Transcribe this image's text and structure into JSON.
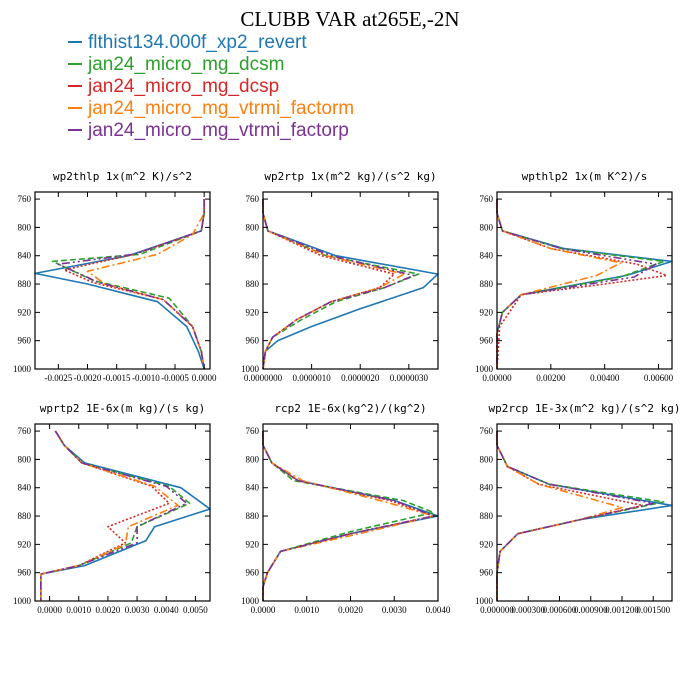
{
  "figure": {
    "title": "CLUBB VAR at265E,-2N"
  },
  "legend": [
    {
      "name": "flthist134.000f_xp2_revert",
      "color": "#1f77b4",
      "dash": ""
    },
    {
      "name": "jan24_micro_mg_dcsm",
      "color": "#2ca02c",
      "dash": "6,3"
    },
    {
      "name": "jan24_micro_mg_dcsp",
      "color": "#d62728",
      "dash": "2,2"
    },
    {
      "name": "jan24_micro_mg_vtrmi_factorm",
      "color": "#ff7f0e",
      "dash": "8,3,2,3"
    },
    {
      "name": "jan24_micro_mg_vtrmi_factorp",
      "color": "#7b3294",
      "dash": "8,3,2,3,2,3"
    }
  ],
  "chart_data": [
    {
      "type": "line",
      "title": "wp2thlp  1x(m^2 K)/s^2",
      "xlim": [
        -0.0029,
        0.0001
      ],
      "xticks": [
        -0.0025,
        -0.002,
        -0.0015,
        -0.001,
        -0.0005,
        0.0
      ],
      "xtick_labels": [
        "-0.0025",
        "-0.0020",
        "-0.0015",
        "-0.0010",
        "-0.0005",
        "0.0000"
      ],
      "ylim": [
        1000,
        750
      ],
      "yticks": [
        760,
        800,
        840,
        880,
        920,
        960,
        1000
      ],
      "series": [
        {
          "name": "flthist134.000f_xp2_revert",
          "values": [
            0,
            0,
            -5e-05,
            -0.0013,
            -0.0029,
            -0.002,
            -0.0008,
            -0.0003,
            -0.0001,
            0
          ],
          "y": [
            760,
            780,
            805,
            840,
            865,
            880,
            905,
            940,
            975,
            1000
          ]
        },
        {
          "name": "jan24_micro_mg_dcsm",
          "values": [
            0,
            0,
            -5e-05,
            -0.0011,
            -0.0026,
            -0.0019,
            -0.0006,
            -0.0002,
            -5e-05,
            0
          ],
          "y": [
            760,
            780,
            805,
            838,
            848,
            875,
            900,
            940,
            975,
            1000
          ]
        },
        {
          "name": "jan24_micro_mg_dcsp",
          "values": [
            0,
            0,
            -5e-05,
            -0.0012,
            -0.0024,
            -0.0019,
            -0.0007,
            -0.0002,
            -5e-05,
            0
          ],
          "y": [
            760,
            780,
            805,
            838,
            860,
            878,
            902,
            940,
            975,
            1000
          ]
        },
        {
          "name": "jan24_micro_mg_vtrmi_factorm",
          "values": [
            0,
            0,
            -0.0002,
            -0.0008,
            -0.002,
            -0.0017,
            -0.0007,
            -0.0002,
            -5e-05,
            0
          ],
          "y": [
            760,
            780,
            810,
            838,
            862,
            880,
            902,
            940,
            975,
            1000
          ]
        },
        {
          "name": "jan24_micro_mg_vtrmi_factorp",
          "values": [
            0,
            0,
            -5e-05,
            -0.0012,
            -0.0025,
            -0.0018,
            -0.0007,
            -0.0002,
            -5e-05,
            0
          ],
          "y": [
            760,
            780,
            805,
            838,
            852,
            878,
            902,
            940,
            975,
            1000
          ]
        }
      ]
    },
    {
      "type": "line",
      "title": "wp2rtp  1x(m^2 kg)/(s^2 kg)",
      "xlim": [
        0,
        3.6e-06
      ],
      "xticks": [
        0,
        1e-06,
        2e-06,
        3e-06
      ],
      "xtick_labels": [
        "0.0000000",
        "0.0000010",
        "0.0000020",
        "0.0000030"
      ],
      "ylim": [
        1000,
        750
      ],
      "yticks": [
        760,
        800,
        840,
        880,
        920,
        960,
        1000
      ],
      "series": [
        {
          "name": "flthist134.000f_xp2_revert",
          "values": [
            0,
            0,
            1e-07,
            1.5e-06,
            3.6e-06,
            3.3e-06,
            2e-06,
            1e-06,
            3e-07,
            5e-08,
            0
          ],
          "y": [
            760,
            780,
            805,
            840,
            866,
            885,
            915,
            940,
            960,
            975,
            1000
          ]
        },
        {
          "name": "jan24_micro_mg_dcsm",
          "values": [
            0,
            0,
            1e-07,
            1.3e-06,
            3.2e-06,
            2.5e-06,
            1.5e-06,
            8e-07,
            2e-07,
            5e-08,
            0
          ],
          "y": [
            760,
            780,
            805,
            840,
            866,
            885,
            905,
            930,
            955,
            975,
            1000
          ]
        },
        {
          "name": "jan24_micro_mg_dcsp",
          "values": [
            0,
            0,
            1e-07,
            1.2e-06,
            2.7e-06,
            2.4e-06,
            1.4e-06,
            7e-07,
            2e-07,
            5e-08,
            0
          ],
          "y": [
            760,
            780,
            805,
            840,
            866,
            885,
            905,
            930,
            955,
            975,
            1000
          ]
        },
        {
          "name": "jan24_micro_mg_vtrmi_factorm",
          "values": [
            0,
            0,
            1e-07,
            1.3e-06,
            2.9e-06,
            2.4e-06,
            1.4e-06,
            7e-07,
            2e-07,
            5e-08,
            0
          ],
          "y": [
            760,
            780,
            805,
            840,
            866,
            885,
            905,
            930,
            955,
            975,
            1000
          ]
        },
        {
          "name": "jan24_micro_mg_vtrmi_factorp",
          "values": [
            0,
            0,
            1e-07,
            1.4e-06,
            3.1e-06,
            2.5e-06,
            1.4e-06,
            7e-07,
            2e-07,
            5e-08,
            0
          ],
          "y": [
            760,
            780,
            805,
            840,
            868,
            885,
            905,
            930,
            955,
            975,
            1000
          ]
        }
      ]
    },
    {
      "type": "line",
      "title": "wpthlp2  1x(m K^2)/s",
      "xlim": [
        0,
        0.0065
      ],
      "xticks": [
        0,
        0.002,
        0.004,
        0.006
      ],
      "xtick_labels": [
        "0.00000",
        "0.00200",
        "0.00400",
        "0.00600"
      ],
      "ylim": [
        1000,
        750
      ],
      "yticks": [
        760,
        800,
        840,
        880,
        920,
        960,
        1000
      ],
      "series": [
        {
          "name": "flthist134.000f_xp2_revert",
          "values": [
            0,
            0,
            0.0002,
            0.0025,
            0.0065,
            0.0048,
            0.0009,
            0.0002,
            0,
            0
          ],
          "y": [
            760,
            780,
            805,
            830,
            848,
            868,
            895,
            920,
            950,
            1000
          ]
        },
        {
          "name": "jan24_micro_mg_dcsm",
          "values": [
            0,
            0,
            0.0002,
            0.0024,
            0.0062,
            0.0046,
            0.0009,
            0.0002,
            0,
            0
          ],
          "y": [
            760,
            780,
            805,
            830,
            848,
            870,
            895,
            920,
            950,
            1000
          ]
        },
        {
          "name": "jan24_micro_mg_dcsp",
          "values": [
            0,
            0,
            0.0002,
            0.002,
            0.0052,
            0.0063,
            0.004,
            0.0009,
            0.0001,
            0
          ],
          "y": [
            760,
            780,
            805,
            830,
            852,
            868,
            880,
            895,
            940,
            1000
          ]
        },
        {
          "name": "jan24_micro_mg_vtrmi_factorm",
          "values": [
            0,
            0,
            0.0002,
            0.002,
            0.0046,
            0.0037,
            0.0009,
            0.0002,
            0,
            0
          ],
          "y": [
            760,
            780,
            805,
            830,
            850,
            868,
            895,
            920,
            950,
            1000
          ]
        },
        {
          "name": "jan24_micro_mg_vtrmi_factorp",
          "values": [
            0,
            0,
            0.0002,
            0.0024,
            0.0059,
            0.0051,
            0.0009,
            0.0002,
            0,
            0
          ],
          "y": [
            760,
            780,
            805,
            830,
            852,
            870,
            895,
            920,
            950,
            1000
          ]
        }
      ]
    },
    {
      "type": "line",
      "title": "wprtp2  1E-6x(m kg)/(s kg)",
      "xlim": [
        -0.0005,
        0.0055
      ],
      "xticks": [
        0,
        0.001,
        0.002,
        0.003,
        0.004,
        0.005
      ],
      "xtick_labels": [
        "0.0000",
        "0.0010",
        "0.0020",
        "0.0030",
        "0.0040",
        "0.0050"
      ],
      "ylim": [
        1000,
        750
      ],
      "yticks": [
        760,
        800,
        840,
        880,
        920,
        960,
        1000
      ],
      "series": [
        {
          "name": "flthist134.000f_xp2_revert",
          "values": [
            0.0002,
            0.0005,
            0.0012,
            0.0045,
            0.0055,
            0.0036,
            0.0033,
            0.0012,
            -0.0003,
            -0.0003
          ],
          "y": [
            760,
            780,
            805,
            840,
            870,
            895,
            915,
            950,
            962,
            1000
          ]
        },
        {
          "name": "jan24_micro_mg_dcsm",
          "values": [
            0.0002,
            0.0005,
            0.0011,
            0.0041,
            0.0048,
            0.003,
            0.0028,
            0.001,
            -0.0003,
            -0.0003
          ],
          "y": [
            760,
            780,
            805,
            838,
            862,
            895,
            918,
            950,
            962,
            1000
          ]
        },
        {
          "name": "jan24_micro_mg_dcsp",
          "values": [
            0.0002,
            0.0005,
            0.0011,
            0.0035,
            0.0041,
            0.002,
            0.0026,
            0.001,
            -0.0003,
            -0.0003
          ],
          "y": [
            760,
            780,
            805,
            838,
            862,
            895,
            918,
            950,
            962,
            1000
          ]
        },
        {
          "name": "jan24_micro_mg_vtrmi_factorm",
          "values": [
            0.0002,
            0.0005,
            0.0011,
            0.0036,
            0.0044,
            0.0027,
            0.0026,
            0.001,
            -0.0003,
            -0.0003
          ],
          "y": [
            760,
            780,
            805,
            838,
            865,
            895,
            920,
            950,
            962,
            1000
          ]
        },
        {
          "name": "jan24_micro_mg_vtrmi_factorp",
          "values": [
            0.0002,
            0.0005,
            0.0011,
            0.004,
            0.0047,
            0.003,
            0.003,
            0.001,
            -0.0003,
            -0.0003
          ],
          "y": [
            760,
            780,
            805,
            838,
            862,
            895,
            918,
            950,
            962,
            1000
          ]
        }
      ]
    },
    {
      "type": "line",
      "title": "rcp2  1E-6x(kg^2)/(kg^2)",
      "xlim": [
        0,
        0.004
      ],
      "xticks": [
        0,
        0.001,
        0.002,
        0.003,
        0.004
      ],
      "xtick_labels": [
        "0.0000",
        "0.0010",
        "0.0020",
        "0.0030",
        "0.0040"
      ],
      "ylim": [
        1000,
        750
      ],
      "yticks": [
        760,
        800,
        840,
        880,
        920,
        960,
        1000
      ],
      "series": [
        {
          "name": "flthist134.000f_xp2_revert",
          "values": [
            0,
            0,
            0.0002,
            0.0008,
            0.003,
            0.004,
            0.002,
            0.0004,
            0.0001,
            0,
            0
          ],
          "y": [
            760,
            780,
            805,
            830,
            858,
            880,
            905,
            930,
            960,
            980,
            1000
          ]
        },
        {
          "name": "jan24_micro_mg_dcsm",
          "values": [
            0,
            0,
            0.0002,
            0.0007,
            0.0032,
            0.0039,
            0.002,
            0.0004,
            0.0001,
            0,
            0
          ],
          "y": [
            760,
            780,
            805,
            830,
            858,
            875,
            902,
            930,
            960,
            980,
            1000
          ]
        },
        {
          "name": "jan24_micro_mg_dcsp",
          "values": [
            0,
            0,
            0.0002,
            0.0008,
            0.0029,
            0.0039,
            0.002,
            0.0004,
            0.0001,
            0,
            0
          ],
          "y": [
            760,
            780,
            805,
            830,
            858,
            880,
            905,
            930,
            960,
            980,
            1000
          ]
        },
        {
          "name": "jan24_micro_mg_vtrmi_factorm",
          "values": [
            0,
            0,
            0.0002,
            0.0009,
            0.0028,
            0.0039,
            0.0022,
            0.0004,
            0.0001,
            0,
            0
          ],
          "y": [
            760,
            780,
            805,
            830,
            860,
            880,
            905,
            930,
            960,
            980,
            1000
          ]
        },
        {
          "name": "jan24_micro_mg_vtrmi_factorp",
          "values": [
            0,
            0,
            0.0002,
            0.0008,
            0.003,
            0.0039,
            0.002,
            0.0004,
            0.0001,
            0,
            0
          ],
          "y": [
            760,
            780,
            805,
            830,
            858,
            880,
            905,
            930,
            960,
            980,
            1000
          ]
        }
      ]
    },
    {
      "type": "line",
      "title": "wp2rcp  1E-3x(m^2 kg)/(s^2 kg)",
      "xlim": [
        0,
        0.00168
      ],
      "xticks": [
        0,
        0.0003,
        0.0006,
        0.0009,
        0.0012,
        0.0015
      ],
      "xtick_labels": [
        "0.000000",
        "0.000300",
        "0.000600",
        "0.000900",
        "0.001200",
        "0.001500"
      ],
      "ylim": [
        1000,
        750
      ],
      "yticks": [
        760,
        800,
        840,
        880,
        920,
        960,
        1000
      ],
      "series": [
        {
          "name": "flthist134.000f_xp2_revert",
          "values": [
            0,
            0,
            0.0001,
            0.0005,
            0.00168,
            0.0008,
            0.0002,
            3e-05,
            0,
            0
          ],
          "y": [
            760,
            780,
            810,
            835,
            865,
            885,
            905,
            930,
            960,
            1000
          ]
        },
        {
          "name": "jan24_micro_mg_dcsm",
          "values": [
            0,
            0,
            0.0001,
            0.0005,
            0.0016,
            0.0008,
            0.0002,
            3e-05,
            0,
            0
          ],
          "y": [
            760,
            780,
            810,
            835,
            860,
            885,
            905,
            930,
            960,
            1000
          ]
        },
        {
          "name": "jan24_micro_mg_dcsp",
          "values": [
            0,
            0,
            0.0001,
            0.0004,
            0.0014,
            0.0008,
            0.0002,
            3e-05,
            0,
            0
          ],
          "y": [
            760,
            780,
            810,
            835,
            865,
            885,
            905,
            930,
            960,
            1000
          ]
        },
        {
          "name": "jan24_micro_mg_vtrmi_factorm",
          "values": [
            0,
            0,
            0.0001,
            0.0004,
            0.0012,
            0.0008,
            0.0002,
            3e-05,
            0,
            0
          ],
          "y": [
            760,
            780,
            810,
            835,
            868,
            885,
            905,
            930,
            960,
            1000
          ]
        },
        {
          "name": "jan24_micro_mg_vtrmi_factorp",
          "values": [
            0,
            0,
            0.0001,
            0.0005,
            0.0015,
            0.0008,
            0.0002,
            3e-05,
            0,
            0
          ],
          "y": [
            760,
            780,
            810,
            835,
            862,
            885,
            905,
            930,
            960,
            1000
          ]
        }
      ]
    }
  ]
}
